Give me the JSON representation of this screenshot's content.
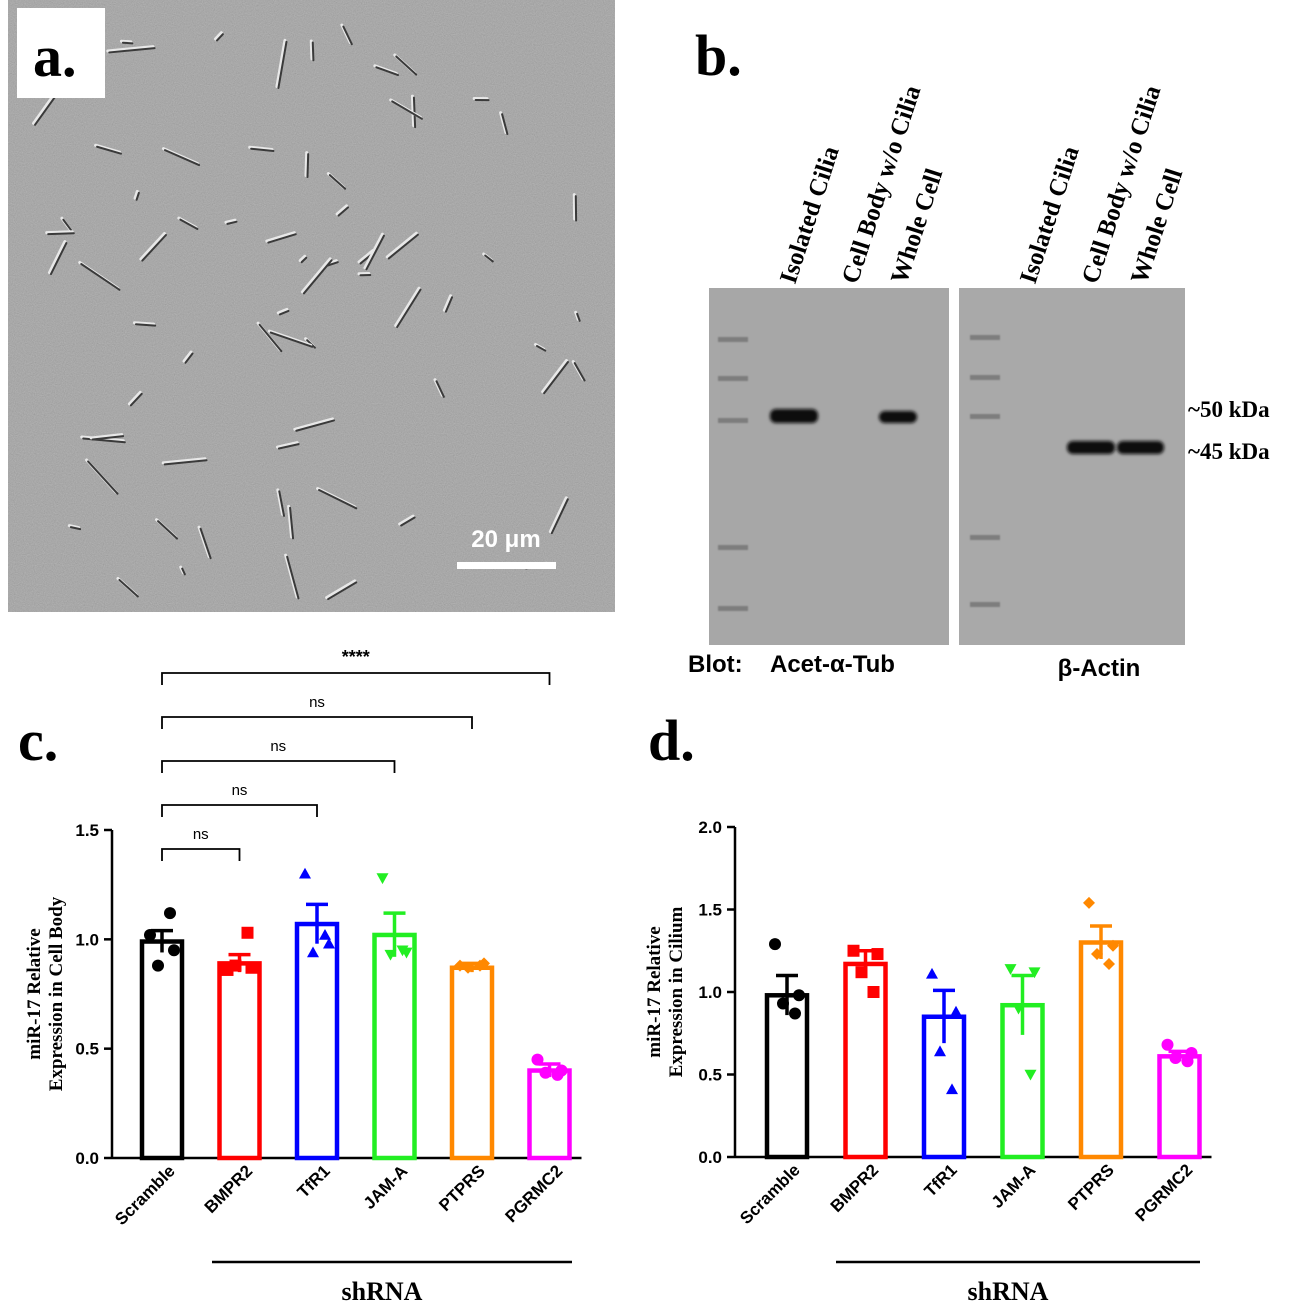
{
  "panels": {
    "a": {
      "letter": "a.",
      "scale_bar_label": "20 μm"
    },
    "b": {
      "letter": "b.",
      "lanes": [
        "Isolated Cilia",
        "Cell Body w/o Cilia",
        "Whole Cell",
        "Isolated Cilia",
        "Cell Body w/o Cilia",
        "Whole Cell"
      ],
      "mw_markers": [
        "~50 kDa",
        "~45 kDa"
      ],
      "blot_prefix": "Blot:",
      "blots": [
        "Acet-α-Tub",
        "β-Actin"
      ]
    },
    "c": {
      "letter": "c."
    },
    "d": {
      "letter": "d."
    }
  },
  "colors": {
    "Scramble": "#000000",
    "BMPR2": "#ff0000",
    "TfR1": "#0000ff",
    "JAM-A": "#22ee22",
    "PTPRS": "#ff8800",
    "PGRMC2": "#ff00ff"
  },
  "chart_data": [
    {
      "type": "bar",
      "panel": "c",
      "categories": [
        "Scramble",
        "BMPR2",
        "TfR1",
        "JAM-A",
        "PTPRS",
        "PGRMC2"
      ],
      "markers": [
        "circle",
        "square",
        "triangle-up",
        "triangle-down",
        "diamond",
        "circle"
      ],
      "values": [
        0.99,
        0.89,
        1.07,
        1.02,
        0.87,
        0.4
      ],
      "sem": [
        0.05,
        0.04,
        0.09,
        0.1,
        0.02,
        0.03
      ],
      "points": [
        [
          1.02,
          0.95,
          0.88,
          1.12
        ],
        [
          0.86,
          0.87,
          0.88,
          1.03
        ],
        [
          1.3,
          0.98,
          0.94,
          1.02
        ],
        [
          1.28,
          0.94,
          0.93,
          0.95
        ],
        [
          0.88,
          0.89,
          0.87,
          0.88
        ],
        [
          0.45,
          0.4,
          0.39,
          0.38
        ]
      ],
      "ylabel": "miR-17 Relative Expression in Cell Body",
      "ylim": [
        0,
        1.5
      ],
      "yticks": [
        "0.0",
        "0.5",
        "1.0",
        "1.5"
      ],
      "group_label": "shRNA",
      "comparisons": [
        {
          "from": "Scramble",
          "to": "BMPR2",
          "label": "ns"
        },
        {
          "from": "Scramble",
          "to": "TfR1",
          "label": "ns"
        },
        {
          "from": "Scramble",
          "to": "JAM-A",
          "label": "ns"
        },
        {
          "from": "Scramble",
          "to": "PTPRS",
          "label": "ns"
        },
        {
          "from": "Scramble",
          "to": "PGRMC2",
          "label": "****"
        }
      ]
    },
    {
      "type": "bar",
      "panel": "d",
      "categories": [
        "Scramble",
        "BMPR2",
        "TfR1",
        "JAM-A",
        "PTPRS",
        "PGRMC2"
      ],
      "markers": [
        "circle",
        "square",
        "triangle-up",
        "triangle-down",
        "diamond",
        "circle"
      ],
      "values": [
        0.98,
        1.17,
        0.85,
        0.92,
        1.3,
        0.61
      ],
      "sem": [
        0.12,
        0.08,
        0.16,
        0.18,
        0.1,
        0.03
      ],
      "points": [
        [
          1.29,
          0.98,
          0.93,
          0.87
        ],
        [
          1.25,
          1.23,
          1.12,
          1.0
        ],
        [
          1.11,
          0.88,
          0.64,
          0.41
        ],
        [
          1.14,
          1.12,
          0.9,
          0.5
        ],
        [
          1.54,
          1.28,
          1.23,
          1.17
        ],
        [
          0.68,
          0.63,
          0.6,
          0.58
        ]
      ],
      "ylabel": "miR-17 Relative Expression in Cilium",
      "ylim": [
        0,
        2.0
      ],
      "yticks": [
        "0.0",
        "0.5",
        "1.0",
        "1.5",
        "2.0"
      ],
      "group_label": "shRNA"
    }
  ]
}
